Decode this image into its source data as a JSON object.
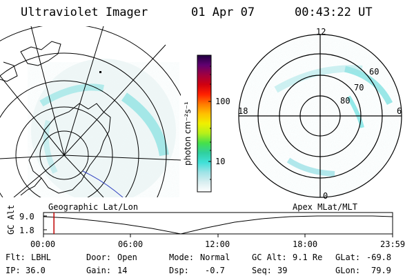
{
  "header": {
    "instrument": "Ultraviolet Imager",
    "date": "01 Apr 07",
    "time": "00:43:22 UT"
  },
  "colorbar": {
    "unit_label": "photon cm⁻²s⁻¹",
    "tick_100": "100",
    "tick_10": "10",
    "stops": [
      "#ffffff",
      "#d8eef0",
      "#9fe3e6",
      "#40e0d8",
      "#2fd0a0",
      "#46e04a",
      "#b6f01a",
      "#f0f000",
      "#ffc000",
      "#ff7a00",
      "#ff2000",
      "#d00010",
      "#a00040",
      "#600070",
      "#200040"
    ]
  },
  "polar_plot": {
    "mlt_labels": {
      "top": "12",
      "bottom": "0",
      "left": "18",
      "right": "6"
    },
    "mlat_labels": [
      "60",
      "70",
      "80"
    ]
  },
  "timeline": {
    "y_axis_label": "GC Alt",
    "y_max": "9.0",
    "y_min": "1.8",
    "left_title": "Geographic Lat/Lon",
    "right_title": "Apex MLat/MLT",
    "time_ticks": [
      "00:00",
      "06:00",
      "12:00",
      "18:00",
      "23:59"
    ],
    "current_time_fraction": 0.03
  },
  "status": {
    "flt_label": "Flt:",
    "flt_value": "LBHL",
    "ip_label": "IP:",
    "ip_value": "36.0",
    "door_label": "Door:",
    "door_value": "Open",
    "gain_label": "Gain:",
    "gain_value": "14",
    "mode_label": "Mode:",
    "mode_value": "Normal",
    "dsp_label": "Dsp:",
    "dsp_value": "-0.7",
    "gcalt_label": "GC Alt:",
    "gcalt_value": "9.1 Re",
    "seq_label": "Seq:",
    "seq_value": "39",
    "glat_label": "GLat:",
    "glat_value": "-69.8",
    "glon_label": "GLon:",
    "glon_value": "79.9"
  }
}
